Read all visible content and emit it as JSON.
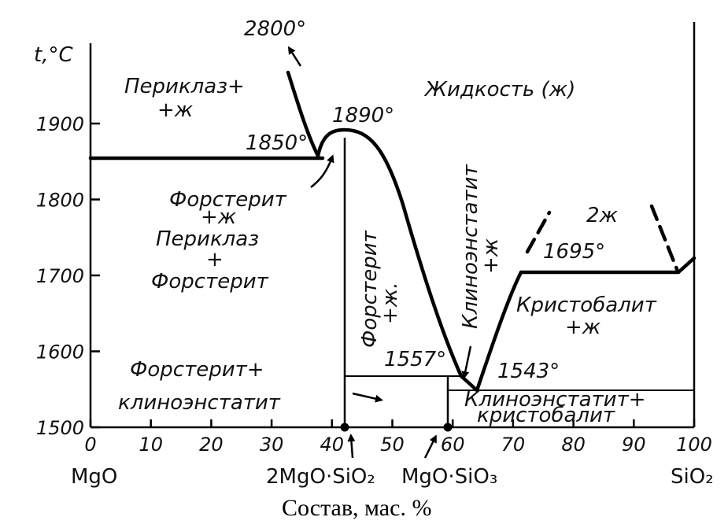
{
  "chart_data": {
    "type": "phase-diagram",
    "ylabel": "t,°C",
    "xlabel": "Состав, мас. %",
    "xlim": [
      0,
      100
    ],
    "ylim": [
      1500,
      2000
    ],
    "x_ticks": [
      "0",
      "10",
      "20",
      "30",
      "40",
      "50",
      "60",
      "70",
      "80",
      "90",
      "100"
    ],
    "y_ticks": [
      "1500",
      "1600",
      "1700",
      "1800",
      "1900"
    ],
    "components": [
      {
        "id": "mgo",
        "label": "MgO",
        "x": 0
      },
      {
        "id": "forsterite",
        "label": "2MgO·SiO₂",
        "x": 42.7
      },
      {
        "id": "clinoenstatite",
        "label": "MgO·SiO₃",
        "x": 60
      },
      {
        "id": "sio2",
        "label": "SiO₂",
        "x": 100
      }
    ],
    "temperatures": [
      {
        "label": "2800°",
        "x": 36,
        "t": 2050
      },
      {
        "label": "1890°",
        "x": 43,
        "t": 1890
      },
      {
        "label": "1850°",
        "x": 38,
        "t": 1850
      },
      {
        "label": "1557°",
        "x": 61,
        "t": 1557
      },
      {
        "label": "1543°",
        "x": 65,
        "t": 1543
      },
      {
        "label": "1695°",
        "x": 73,
        "t": 1695
      }
    ],
    "regions": {
      "liquid": "Жидкость (ж)",
      "periclase_liquid_1": "Периклаз+",
      "periclase_liquid_2": "+ж",
      "forsterite_liquid_1": "Форстерит",
      "forsterite_liquid_2": "+ж",
      "periclase_forsterite_1": "Периклаз",
      "periclase_forsterite_2": "+",
      "periclase_forsterite_3": "Форстерит",
      "forsterite_liquid_vertical_1": "Форстерит",
      "forsterite_liquid_vertical_2": "+ж.",
      "clinoenstatite_liquid_1": "Клиноэнстатит",
      "clinoenstatite_liquid_2": "+ж",
      "two_liquids": "2ж",
      "cristobalite_liquid_1": "Кристобалит",
      "cristobalite_liquid_2": "+ж",
      "forsterite_clinoenstatite_1": "Форстерит+",
      "forsterite_clinoenstatite_2": "клиноэнстатит",
      "clinoenstatite_cristobalite_1": "Клиноэнстатит+",
      "clinoenstatite_cristobalite_2": "кристобалит"
    }
  }
}
